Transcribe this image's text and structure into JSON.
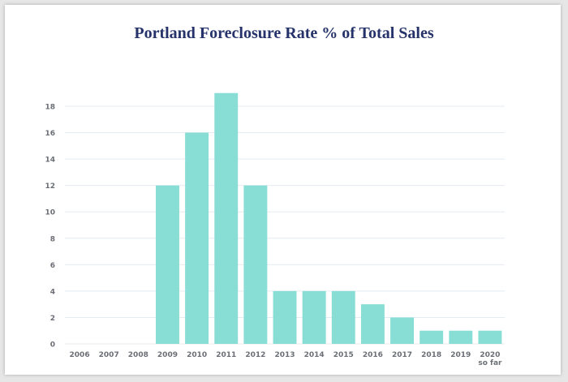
{
  "chart_data": {
    "type": "bar",
    "title": "Portland Foreclosure Rate % of Total Sales",
    "xlabel": "",
    "ylabel": "",
    "categories": [
      "2006",
      "2007",
      "2008",
      "2009",
      "2010",
      "2011",
      "2012",
      "2013",
      "2014",
      "2015",
      "2016",
      "2017",
      "2018",
      "2019",
      "2020 so far"
    ],
    "category_lines": [
      [
        "2006"
      ],
      [
        "2007"
      ],
      [
        "2008"
      ],
      [
        "2009"
      ],
      [
        "2010"
      ],
      [
        "2011"
      ],
      [
        "2012"
      ],
      [
        "2013"
      ],
      [
        "2014"
      ],
      [
        "2015"
      ],
      [
        "2016"
      ],
      [
        "2017"
      ],
      [
        "2018"
      ],
      [
        "2019"
      ],
      [
        "2020",
        "so far"
      ]
    ],
    "values": [
      0,
      0,
      0,
      12,
      16,
      19,
      12,
      4,
      4,
      4,
      3,
      2,
      1,
      1,
      1
    ],
    "ylim": [
      0,
      19
    ],
    "yticks": [
      0,
      2,
      4,
      6,
      8,
      10,
      12,
      14,
      16,
      18
    ],
    "grid": true,
    "legend": "none",
    "colors": {
      "bar": "#88ddd4",
      "grid": "#e4ecf2",
      "title": "#25336a",
      "tick": "#6b6e75"
    }
  }
}
